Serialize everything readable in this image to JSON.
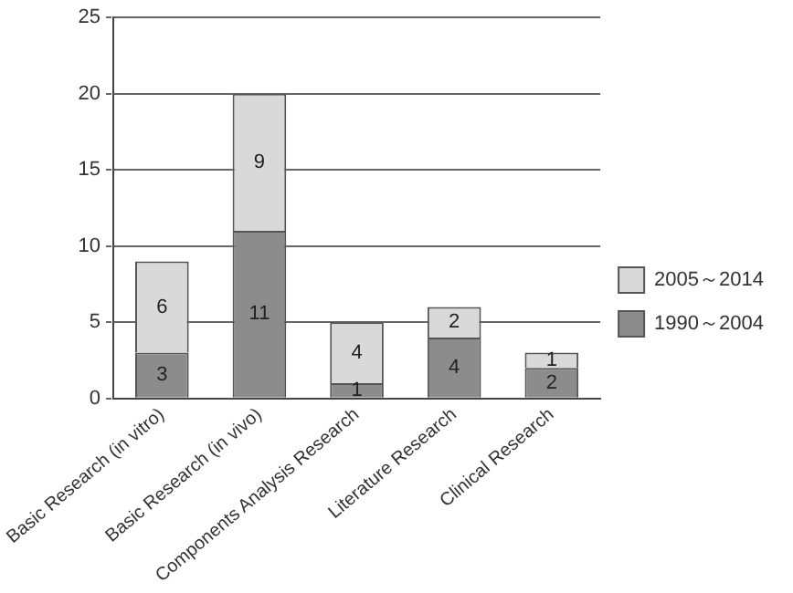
{
  "chart_data": {
    "type": "bar",
    "stacked": true,
    "categories": [
      "Basic Research (in vitro)",
      "Basic Research (in vivo)",
      "Components Analysis Research",
      "Literature Research",
      "Clinical Research"
    ],
    "series": [
      {
        "name": "1990～2004",
        "color": "#8c8c8c",
        "values": [
          3,
          11,
          1,
          4,
          2
        ]
      },
      {
        "name": "2005～2014",
        "color": "#d9d9d9",
        "values": [
          6,
          9,
          4,
          2,
          1
        ]
      }
    ],
    "ylim": [
      0,
      25
    ],
    "yticks": [
      0,
      5,
      10,
      15,
      20,
      25
    ],
    "grid": "y",
    "legend": "right",
    "data_labels": true
  }
}
